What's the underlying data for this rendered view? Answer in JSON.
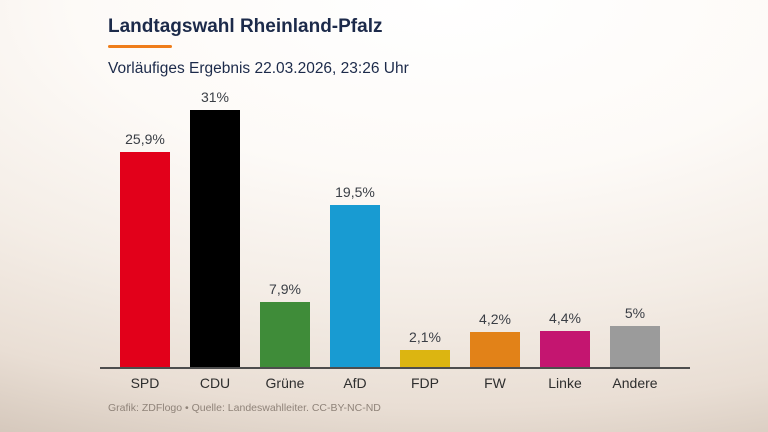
{
  "header": {
    "title": "Landtagswahl Rheinland-Pfalz",
    "subtitle": "Vorläufiges Ergebnis 22.03.2026, 23:26 Uhr",
    "accent_color": "#ef7d1a"
  },
  "chart_data": {
    "type": "bar",
    "title": "Landtagswahl Rheinland-Pfalz",
    "subtitle": "Vorläufiges Ergebnis 22.03.2026, 23:26 Uhr",
    "categories": [
      "SPD",
      "CDU",
      "Grüne",
      "AfD",
      "FDP",
      "FW",
      "Linke",
      "Andere"
    ],
    "values": [
      25.9,
      31,
      7.9,
      19.5,
      2.1,
      4.2,
      4.4,
      5
    ],
    "value_labels": [
      "25,9%",
      "31%",
      "7,9%",
      "19,5%",
      "2,1%",
      "4,2%",
      "4,4%",
      "5%"
    ],
    "bar_colors": [
      "#e2001a",
      "#000000",
      "#3f8c39",
      "#189bd2",
      "#dcb511",
      "#e28218",
      "#c41570",
      "#9b9b9b"
    ],
    "unit": "%",
    "ylim": [
      0,
      31
    ],
    "grid": false,
    "legend": false,
    "xlabel": "",
    "ylabel": ""
  },
  "footer": {
    "credit": "Grafik: ZDFlogo • Quelle: Landeswahlleiter. CC-BY-NC-ND"
  }
}
